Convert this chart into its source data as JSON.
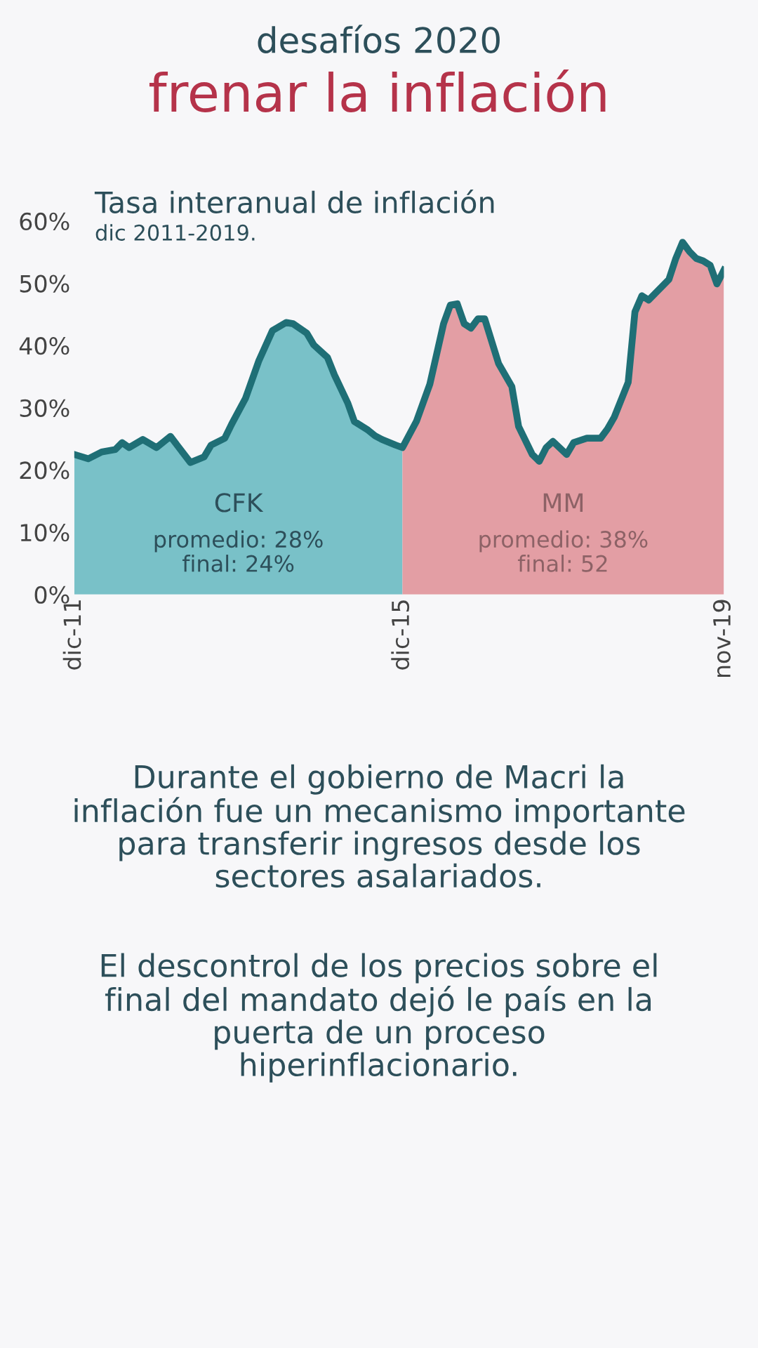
{
  "chart_data": {
    "type": "area",
    "title": "frenar la inflación",
    "subtitle": "desafíos 2020",
    "annotations": [
      "Tasa interanual de inflación",
      "dic 2011-2019.",
      "promedio: 28%\nfinal: 24%",
      "promedio: 38%\nfinal: 52",
      "Durante el gobierno de Macri la\ninflación fue un mecanismo importante\npara transferir ingresos desde los\nsectores asalariados.",
      "El descontrol de los precios sobre el\nfinal del mandato dejó le país en la\npuerta de un proceso\nhiperinflacionario."
    ],
    "series": [
      {
        "name": "CFK",
        "color": "#79c1c8",
        "x": [
          "2011-12",
          "2012-02",
          "2012-04",
          "2012-06",
          "2012-07",
          "2012-08",
          "2012-10",
          "2012-12",
          "2013-02",
          "2013-05",
          "2013-07",
          "2013-08",
          "2013-10",
          "2013-11",
          "2014-01",
          "2014-03",
          "2014-05",
          "2014-07",
          "2014-08",
          "2014-10",
          "2014-11",
          "2015-01",
          "2015-02",
          "2015-04",
          "2015-05",
          "2015-07",
          "2015-08",
          "2015-09",
          "2015-11",
          "2015-12"
        ],
        "values": [
          22.5,
          21.8,
          22.9,
          23.3,
          24.4,
          23.6,
          24.9,
          23.6,
          25.4,
          21.2,
          22.1,
          24.0,
          25.1,
          27.4,
          31.5,
          37.5,
          42.4,
          43.7,
          43.5,
          42.0,
          40.1,
          38.1,
          35.3,
          30.8,
          27.8,
          26.4,
          25.5,
          24.9,
          24.0,
          23.6
        ]
      },
      {
        "name": "MM",
        "color": "#e39ea4",
        "x": [
          "2015-12",
          "2016-02",
          "2016-04",
          "2016-06",
          "2016-07",
          "2016-08",
          "2016-09",
          "2016-10",
          "2016-11",
          "2016-12",
          "2017-02",
          "2017-04",
          "2017-05",
          "2017-07",
          "2017-08",
          "2017-09",
          "2017-10",
          "2017-12",
          "2018-01",
          "2018-03",
          "2018-05",
          "2018-06",
          "2018-07",
          "2018-09",
          "2018-10",
          "2018-11",
          "2018-12",
          "2019-03",
          "2019-04",
          "2019-05",
          "2019-06",
          "2019-07",
          "2019-08",
          "2019-09",
          "2019-10",
          "2019-11"
        ],
        "values": [
          23.6,
          27.8,
          33.8,
          43.5,
          46.5,
          46.7,
          43.5,
          42.8,
          44.3,
          44.3,
          37.1,
          33.4,
          27.0,
          22.5,
          21.4,
          23.6,
          24.6,
          22.5,
          24.4,
          25.1,
          25.1,
          26.6,
          28.5,
          34.1,
          45.4,
          48.0,
          47.3,
          50.6,
          54.0,
          56.6,
          55.1,
          54.0,
          53.6,
          52.9,
          49.9,
          52.1
        ]
      },
      {
        "type": "line",
        "color": "#1f6f76",
        "x": [
          "2011-12",
          "2012-02",
          "2012-04",
          "2012-06",
          "2012-07",
          "2012-08",
          "2012-10",
          "2012-12",
          "2013-02",
          "2013-05",
          "2013-07",
          "2013-08",
          "2013-10",
          "2013-11",
          "2014-01",
          "2014-03",
          "2014-05",
          "2014-07",
          "2014-08",
          "2014-10",
          "2014-11",
          "2015-01",
          "2015-02",
          "2015-04",
          "2015-05",
          "2015-07",
          "2015-08",
          "2015-09",
          "2015-11",
          "2015-12",
          "2016-02",
          "2016-04",
          "2016-06",
          "2016-07",
          "2016-08",
          "2016-09",
          "2016-10",
          "2016-11",
          "2016-12",
          "2017-02",
          "2017-04",
          "2017-05",
          "2017-07",
          "2017-08",
          "2017-09",
          "2017-10",
          "2017-12",
          "2018-01",
          "2018-03",
          "2018-05",
          "2018-06",
          "2018-07",
          "2018-09",
          "2018-10",
          "2018-11",
          "2018-12",
          "2019-03",
          "2019-04",
          "2019-05",
          "2019-06",
          "2019-07",
          "2019-08",
          "2019-09",
          "2019-10",
          "2019-11"
        ],
        "values": [
          22.5,
          21.8,
          22.9,
          23.3,
          24.4,
          23.6,
          24.9,
          23.6,
          25.4,
          21.2,
          22.1,
          24.0,
          25.1,
          27.4,
          31.5,
          37.5,
          42.4,
          43.7,
          43.5,
          42.0,
          40.1,
          38.1,
          35.3,
          30.8,
          27.8,
          26.4,
          25.5,
          24.9,
          24.0,
          23.6,
          27.8,
          33.8,
          43.5,
          46.5,
          46.7,
          43.5,
          42.8,
          44.3,
          44.3,
          37.1,
          33.4,
          27.0,
          22.5,
          21.4,
          23.6,
          24.6,
          22.5,
          24.4,
          25.1,
          25.1,
          26.6,
          28.5,
          34.1,
          45.4,
          48.0,
          47.3,
          50.6,
          54.0,
          56.6,
          55.1,
          54.0,
          53.6,
          52.9,
          49.9,
          52.1
        ]
      }
    ],
    "xlim": [
      "2011-12",
      "2019-11"
    ],
    "xticks": [
      {
        "value": "2011-12",
        "label": "dic-11"
      },
      {
        "value": "2015-12",
        "label": "dic-15"
      },
      {
        "value": "2019-11",
        "label": "nov-19"
      }
    ],
    "ylim": [
      0,
      60
    ],
    "yticks": [
      {
        "value": 0,
        "label": "0%"
      },
      {
        "value": 10,
        "label": "10%"
      },
      {
        "value": 20,
        "label": "20%"
      },
      {
        "value": 30,
        "label": "30%"
      },
      {
        "value": 40,
        "label": "40%"
      },
      {
        "value": 50,
        "label": "50%"
      },
      {
        "value": 60,
        "label": "60%"
      }
    ],
    "grid": false,
    "legend": false,
    "line_style": "solid"
  }
}
